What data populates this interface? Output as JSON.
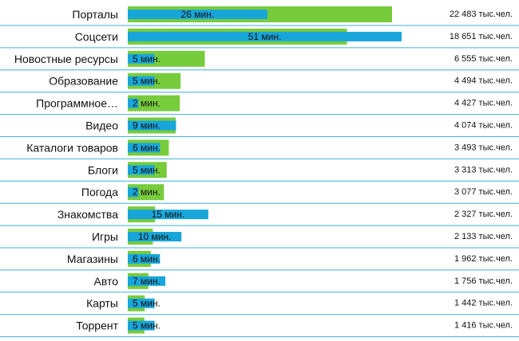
{
  "chart_data": {
    "type": "bar",
    "categories": [
      "Порталы",
      "Соцсети",
      "Новостные ресурсы",
      "Образование",
      "Программное…",
      "Видео",
      "Каталоги товаров",
      "Блоги",
      "Погода",
      "Знакомства",
      "Игры",
      "Магазины",
      "Авто",
      "Карты",
      "Торрент"
    ],
    "series": [
      {
        "color": "#77cc3c",
        "values": [
          22483,
          18651,
          6555,
          4494,
          4427,
          4074,
          3493,
          3313,
          3077,
          2327,
          2133,
          1962,
          1756,
          1442,
          1416
        ],
        "value_labels": [
          "22 483 тыс.чел.",
          "18 651 тыс.чел.",
          "6 555 тыс.чел.",
          "4 494 тыс.чел.",
          "4 427 тыс.чел.",
          "4 074 тыс.чел.",
          "3 493 тыс.чел.",
          "3 313 тыс.чел.",
          "3 077 тыс.чел.",
          "2 327 тыс.чел.",
          "2 133 тыс.чел.",
          "1 962 тыс.чел.",
          "1 756 тыс.чел.",
          "1 442 тыс.чел.",
          "1 416 тыс.чел."
        ]
      },
      {
        "color": "#18a6da",
        "values": [
          26,
          51,
          5,
          5,
          2,
          9,
          6,
          5,
          2,
          15,
          10,
          6,
          7,
          5,
          5
        ],
        "value_labels": [
          "26 мин.",
          "51 мин.",
          "5 мин.",
          "5 мин.",
          "2 мин.",
          "9 мин.",
          "6 мин.",
          "5 мин.",
          "2 мин.",
          "15 мин.",
          "10 мин.",
          "6 мин.",
          "7 мин.",
          "5 мин.",
          "5 мин."
        ]
      }
    ]
  }
}
